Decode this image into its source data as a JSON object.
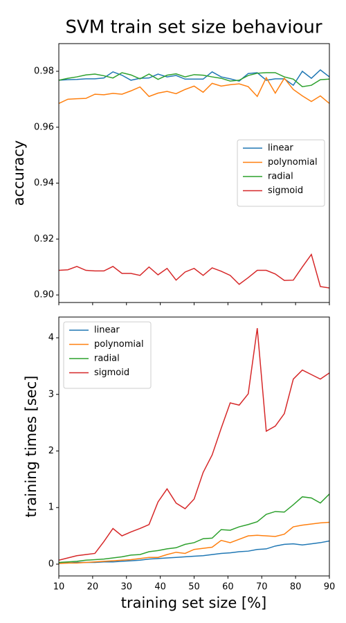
{
  "chart_data": [
    {
      "type": "line",
      "title": "SVM train set size behaviour",
      "ylabel": "accuracy",
      "x": [
        10,
        12.67,
        15.33,
        18,
        20.67,
        23.33,
        26,
        28.67,
        31.33,
        34,
        36.67,
        39.33,
        42,
        44.67,
        47.33,
        50,
        52.67,
        55.33,
        58,
        60.67,
        63.33,
        66,
        68.67,
        71.33,
        74,
        76.67,
        79.33,
        82,
        84.67,
        87.33,
        90
      ],
      "series": [
        {
          "name": "linear",
          "color": "#1f77b4",
          "values": [
            0.9768,
            0.977,
            0.9771,
            0.9773,
            0.9773,
            0.9776,
            0.9798,
            0.9786,
            0.9768,
            0.9775,
            0.9776,
            0.979,
            0.978,
            0.9785,
            0.9772,
            0.9772,
            0.9772,
            0.9798,
            0.978,
            0.9773,
            0.9765,
            0.9792,
            0.9795,
            0.9768,
            0.9773,
            0.9773,
            0.975,
            0.98,
            0.9775,
            0.9805,
            0.978
          ]
        },
        {
          "name": "polynomial",
          "color": "#ff7f0e",
          "values": [
            0.9685,
            0.97,
            0.9702,
            0.9703,
            0.9718,
            0.9716,
            0.9721,
            0.9718,
            0.973,
            0.9744,
            0.971,
            0.9722,
            0.9728,
            0.972,
            0.9735,
            0.9747,
            0.9725,
            0.9757,
            0.9747,
            0.9752,
            0.9755,
            0.9745,
            0.971,
            0.9777,
            0.9722,
            0.9775,
            0.9735,
            0.9712,
            0.9692,
            0.9712,
            0.9685
          ]
        },
        {
          "name": "radial",
          "color": "#2ca02c",
          "values": [
            0.9768,
            0.9775,
            0.978,
            0.9787,
            0.979,
            0.9784,
            0.9776,
            0.9795,
            0.9787,
            0.9773,
            0.979,
            0.9771,
            0.9786,
            0.9791,
            0.978,
            0.9788,
            0.9786,
            0.978,
            0.9775,
            0.9765,
            0.9768,
            0.9785,
            0.9793,
            0.9795,
            0.9795,
            0.978,
            0.9772,
            0.9745,
            0.975,
            0.977,
            0.9772
          ]
        },
        {
          "name": "sigmoid",
          "color": "#d62728",
          "values": [
            0.9088,
            0.909,
            0.9102,
            0.9088,
            0.9086,
            0.9086,
            0.9102,
            0.9077,
            0.9077,
            0.907,
            0.91,
            0.9072,
            0.9095,
            0.9053,
            0.9082,
            0.9095,
            0.907,
            0.9097,
            0.9085,
            0.907,
            0.9038,
            0.9062,
            0.9088,
            0.9088,
            0.9075,
            0.9052,
            0.9053,
            0.91,
            0.9145,
            0.903,
            0.9025
          ]
        }
      ],
      "xlim": [
        10,
        90
      ],
      "ylim": [
        0.8973,
        0.9899
      ],
      "yticks": [
        {
          "value": 0.9,
          "label": "0.90"
        },
        0.92,
        0.94,
        0.96,
        0.98
      ],
      "legend": "center right"
    },
    {
      "type": "line",
      "xlabel": "training set size [%]",
      "ylabel": "training times [sec]",
      "x": [
        10,
        12.67,
        15.33,
        18,
        20.67,
        23.33,
        26,
        28.67,
        31.33,
        34,
        36.67,
        39.33,
        42,
        44.67,
        47.33,
        50,
        52.67,
        55.33,
        58,
        60.67,
        63.33,
        66,
        68.67,
        71.33,
        74,
        76.67,
        79.33,
        82,
        84.67,
        87.33,
        90
      ],
      "series": [
        {
          "name": "linear",
          "color": "#1f77b4",
          "values": [
            0.02,
            0.02,
            0.03,
            0.03,
            0.03,
            0.04,
            0.04,
            0.05,
            0.06,
            0.07,
            0.09,
            0.1,
            0.11,
            0.12,
            0.13,
            0.14,
            0.15,
            0.17,
            0.19,
            0.2,
            0.22,
            0.23,
            0.26,
            0.27,
            0.32,
            0.35,
            0.36,
            0.34,
            0.36,
            0.38,
            0.41
          ]
        },
        {
          "name": "polynomial",
          "color": "#ff7f0e",
          "values": [
            0.01,
            0.02,
            0.02,
            0.03,
            0.04,
            0.05,
            0.06,
            0.07,
            0.08,
            0.1,
            0.12,
            0.12,
            0.17,
            0.21,
            0.19,
            0.26,
            0.28,
            0.3,
            0.42,
            0.38,
            0.44,
            0.5,
            0.51,
            0.5,
            0.49,
            0.53,
            0.66,
            0.69,
            0.71,
            0.73,
            0.74
          ]
        },
        {
          "name": "radial",
          "color": "#2ca02c",
          "values": [
            0.03,
            0.04,
            0.05,
            0.07,
            0.08,
            0.09,
            0.11,
            0.13,
            0.16,
            0.17,
            0.22,
            0.24,
            0.27,
            0.29,
            0.35,
            0.38,
            0.45,
            0.46,
            0.61,
            0.6,
            0.66,
            0.7,
            0.75,
            0.88,
            0.93,
            0.92,
            1.05,
            1.19,
            1.17,
            1.08,
            1.24
          ]
        },
        {
          "name": "sigmoid",
          "color": "#d62728",
          "values": [
            0.07,
            0.11,
            0.15,
            0.17,
            0.19,
            0.4,
            0.63,
            0.5,
            0.57,
            0.63,
            0.7,
            1.1,
            1.33,
            1.08,
            0.98,
            1.15,
            1.62,
            1.93,
            2.4,
            2.85,
            2.81,
            3.01,
            4.17,
            2.35,
            2.44,
            2.66,
            3.27,
            3.43,
            3.35,
            3.27,
            3.38
          ]
        }
      ],
      "xlim": [
        10,
        90
      ],
      "ylim": [
        -0.208,
        4.367
      ],
      "xticks": [
        10,
        20,
        30,
        40,
        50,
        60,
        70,
        80,
        90
      ],
      "yticks": [
        0,
        1,
        2,
        3,
        4
      ],
      "legend": "upper left"
    }
  ]
}
